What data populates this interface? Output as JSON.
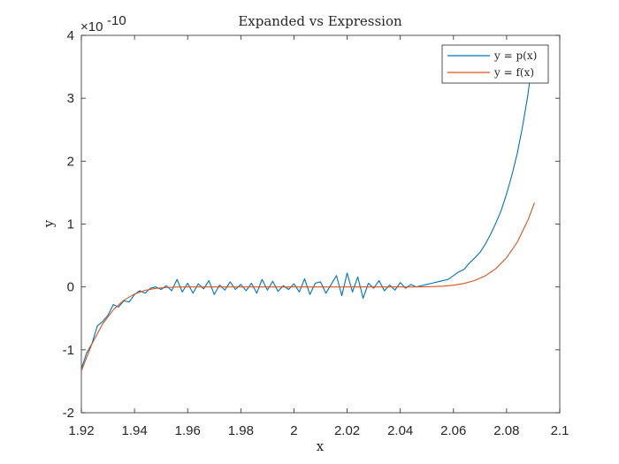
{
  "chart_data": {
    "type": "line",
    "title": "Expanded vs Expression",
    "xlabel": "x",
    "ylabel": "y",
    "xlim": [
      1.92,
      2.1
    ],
    "ylim": [
      -2e-10,
      4e-10
    ],
    "y_exponent_label": "×10",
    "y_exponent_power": "-10",
    "x_ticks": [
      1.92,
      1.94,
      1.96,
      1.98,
      2.0,
      2.02,
      2.04,
      2.06,
      2.08,
      2.1
    ],
    "x_tick_labels": [
      "1.92",
      "1.94",
      "1.96",
      "1.98",
      "2",
      "2.02",
      "2.04",
      "2.06",
      "2.08",
      "2.1"
    ],
    "y_ticks": [
      -2,
      -1,
      0,
      1,
      2,
      3,
      4
    ],
    "y_tick_labels": [
      "-2",
      "-1",
      "0",
      "1",
      "2",
      "3",
      "4"
    ],
    "grid": false,
    "legend_position": "top-right",
    "series": [
      {
        "name": "y = p(x)",
        "color": "#0072BD",
        "x": [
          1.92,
          1.922,
          1.924,
          1.926,
          1.928,
          1.93,
          1.932,
          1.934,
          1.936,
          1.938,
          1.94,
          1.942,
          1.944,
          1.946,
          1.948,
          1.95,
          1.952,
          1.954,
          1.956,
          1.958,
          1.96,
          1.962,
          1.964,
          1.966,
          1.968,
          1.97,
          1.972,
          1.974,
          1.976,
          1.978,
          1.98,
          1.982,
          1.984,
          1.986,
          1.988,
          1.99,
          1.992,
          1.994,
          1.996,
          1.998,
          2.0,
          2.002,
          2.004,
          2.006,
          2.008,
          2.01,
          2.012,
          2.014,
          2.016,
          2.018,
          2.02,
          2.022,
          2.024,
          2.026,
          2.028,
          2.03,
          2.032,
          2.034,
          2.036,
          2.038,
          2.04,
          2.042,
          2.044,
          2.046,
          2.048,
          2.05,
          2.052,
          2.054,
          2.056,
          2.058,
          2.06,
          2.062,
          2.064,
          2.066,
          2.068,
          2.07,
          2.072,
          2.074,
          2.076,
          2.078,
          2.08,
          2.082,
          2.084,
          2.086,
          2.088,
          2.09
        ],
        "values": [
          -1.3e-10,
          -1.05e-10,
          -9e-11,
          -6.2e-11,
          -5.5e-11,
          -4.5e-11,
          -2.8e-11,
          -3.2e-11,
          -2.2e-11,
          -2.4e-11,
          -1.2e-11,
          -6e-12,
          -1e-11,
          -2e-12,
          0.0,
          -4e-12,
          2e-12,
          -6e-12,
          1.2e-11,
          -8e-12,
          6e-12,
          -1e-11,
          5e-12,
          -3e-12,
          1e-11,
          -1.2e-11,
          3e-12,
          -5e-12,
          8e-12,
          -4e-12,
          4e-12,
          -6e-12,
          6e-12,
          -1e-11,
          1.2e-11,
          -5e-12,
          9e-12,
          -7e-12,
          2e-12,
          -4e-12,
          5e-12,
          -8e-12,
          1.3e-11,
          -1.2e-11,
          6e-12,
          8e-12,
          -1e-11,
          4e-12,
          1.8e-11,
          -1.4e-11,
          2.2e-11,
          -8e-12,
          1.6e-11,
          -1.8e-11,
          6e-12,
          -2e-12,
          1e-11,
          -6e-12,
          3e-12,
          -5e-12,
          7e-12,
          -2e-12,
          4e-12,
          0.0,
          2e-12,
          4e-12,
          6e-12,
          8e-12,
          1e-11,
          1.2e-11,
          1.8e-11,
          2.4e-11,
          2.8e-11,
          3.8e-11,
          4.6e-11,
          5.5e-11,
          6.8e-11,
          8.4e-11,
          1.02e-10,
          1.22e-10,
          1.48e-10,
          1.78e-10,
          2.12e-10,
          2.55e-10,
          3.05e-10,
          3.7e-10
        ]
      },
      {
        "name": "y = f(x)",
        "color": "#D95319",
        "x": [
          1.92,
          1.924,
          1.928,
          1.932,
          1.936,
          1.94,
          1.944,
          1.948,
          1.952,
          1.956,
          1.96,
          1.97,
          1.98,
          1.99,
          2.0,
          2.01,
          2.02,
          2.03,
          2.04,
          2.044,
          2.048,
          2.052,
          2.056,
          2.06,
          2.064,
          2.068,
          2.072,
          2.076,
          2.08,
          2.084,
          2.088,
          2.0905
        ],
        "values": [
          -1.336e-10,
          -9.04e-11,
          -5.88e-11,
          -3.64e-11,
          -2.11e-11,
          -1.13e-11,
          -5.4e-12,
          -2.3e-12,
          -8e-13,
          -2e-13,
          0.0,
          0.0,
          0.0,
          0.0,
          0.0,
          0.0,
          0.0,
          0.0,
          0.0,
          3e-14,
          1.5e-13,
          4.9e-13,
          1.26e-12,
          2.79e-12,
          5.56e-12,
          1.025e-11,
          1.777e-11,
          2.932e-11,
          4.647e-11,
          7.119e-11,
          1.0592e-10,
          1.3401e-10
        ]
      }
    ]
  }
}
